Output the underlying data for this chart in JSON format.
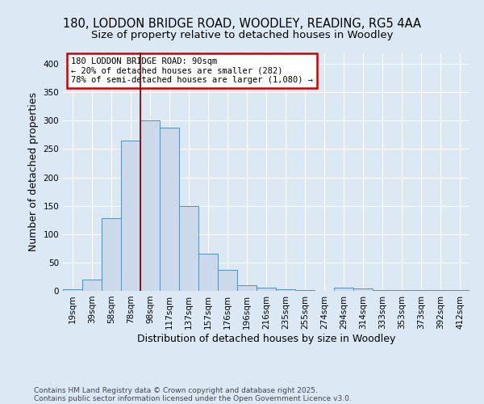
{
  "title1": "180, LODDON BRIDGE ROAD, WOODLEY, READING, RG5 4AA",
  "title2": "Size of property relative to detached houses in Woodley",
  "xlabel": "Distribution of detached houses by size in Woodley",
  "ylabel": "Number of detached properties",
  "footnote1": "Contains HM Land Registry data © Crown copyright and database right 2025.",
  "footnote2": "Contains public sector information licensed under the Open Government Licence v3.0.",
  "bin_labels": [
    "19sqm",
    "39sqm",
    "58sqm",
    "78sqm",
    "98sqm",
    "117sqm",
    "137sqm",
    "157sqm",
    "176sqm",
    "196sqm",
    "216sqm",
    "235sqm",
    "255sqm",
    "274sqm",
    "294sqm",
    "314sqm",
    "333sqm",
    "353sqm",
    "373sqm",
    "392sqm",
    "412sqm"
  ],
  "bar_values": [
    3,
    20,
    128,
    265,
    300,
    287,
    150,
    65,
    37,
    10,
    6,
    3,
    2,
    0,
    5,
    4,
    2,
    1,
    1,
    1,
    1
  ],
  "bar_color": "#ccd9ea",
  "bar_edge_color": "#5b8db8",
  "vline_x_index": 3.5,
  "vline_color": "#990000",
  "annotation_text": "180 LODDON BRIDGE ROAD: 90sqm\n← 20% of detached houses are smaller (282)\n78% of semi-detached houses are larger (1,080) →",
  "annotation_box_color": "#cc0000",
  "annotation_bg": "#ffffff",
  "ylim": [
    0,
    420
  ],
  "yticks": [
    0,
    50,
    100,
    150,
    200,
    250,
    300,
    350,
    400
  ],
  "bg_color": "#dce9f5",
  "plot_bg_color": "#dce9f5",
  "grid_color": "#ffffff",
  "title_fontsize": 10.5,
  "subtitle_fontsize": 9.5,
  "tick_fontsize": 7.5,
  "ylabel_fontsize": 9,
  "xlabel_fontsize": 9,
  "footnote_fontsize": 6.5,
  "annot_fontsize": 7.5
}
